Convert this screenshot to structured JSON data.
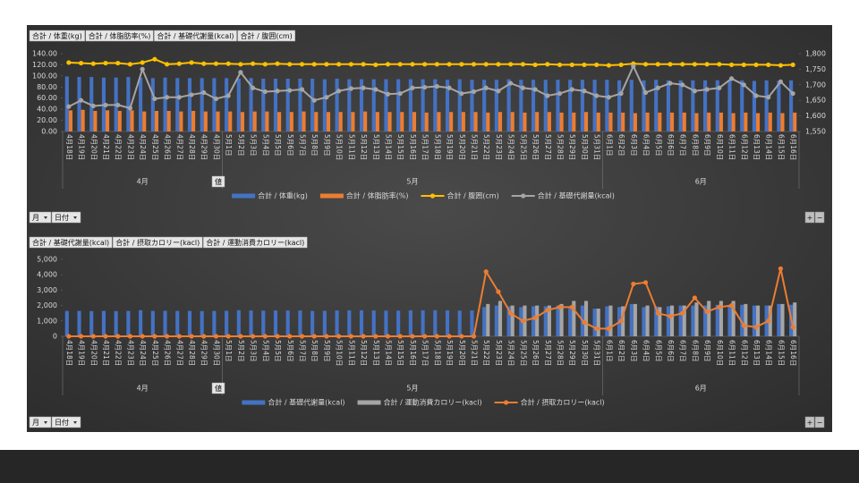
{
  "chart_data": [
    {
      "type": "combo",
      "field_buttons": [
        "合計 / 体重(kg)",
        "合計 / 体脂肪率(%)",
        "合計 / 基礎代謝量(kcal)",
        "合計 / 腹囲(cm)"
      ],
      "categories": [
        "4月18日",
        "4月19日",
        "4月20日",
        "4月21日",
        "4月22日",
        "4月23日",
        "4月24日",
        "4月25日",
        "4月26日",
        "4月27日",
        "4月28日",
        "4月29日",
        "4月30日",
        "5月1日",
        "5月2日",
        "5月3日",
        "5月4日",
        "5月5日",
        "5月6日",
        "5月7日",
        "5月8日",
        "5月9日",
        "5月10日",
        "5月11日",
        "5月12日",
        "5月13日",
        "5月14日",
        "5月15日",
        "5月16日",
        "5月17日",
        "5月18日",
        "5月19日",
        "5月20日",
        "5月21日",
        "5月22日",
        "5月23日",
        "5月24日",
        "5月25日",
        "5月26日",
        "5月27日",
        "5月28日",
        "5月29日",
        "5月30日",
        "5月31日",
        "6月1日",
        "6月2日",
        "6月3日",
        "6月4日",
        "6月5日",
        "6月6日",
        "6月7日",
        "6月8日",
        "6月9日",
        "6月10日",
        "6月11日",
        "6月12日",
        "6月13日",
        "6月14日",
        "6月15日",
        "6月16日"
      ],
      "groups": [
        "4月",
        "5月",
        "6月"
      ],
      "value_button": "値",
      "filter_buttons": [
        "月",
        "日付"
      ],
      "zoom_buttons": [
        "+",
        "−"
      ],
      "ylim": [
        0,
        140
      ],
      "yticks": [
        {
          "value": 0,
          "label": "0.00"
        },
        {
          "value": 20,
          "label": "20.00"
        },
        {
          "value": 40,
          "label": "40.00"
        },
        {
          "value": 60,
          "label": "60.00"
        },
        {
          "value": 80,
          "label": "80.00"
        },
        {
          "value": 100,
          "label": "100.00"
        },
        {
          "value": 120,
          "label": "120.00"
        },
        {
          "value": 140,
          "label": "140.00"
        }
      ],
      "y2lim": [
        1550,
        1800
      ],
      "y2ticks": [
        {
          "value": 1550,
          "label": "1,550"
        },
        {
          "value": 1600,
          "label": "1,600"
        },
        {
          "value": 1650,
          "label": "1,650"
        },
        {
          "value": 1700,
          "label": "1,700"
        },
        {
          "value": 1750,
          "label": "1,750"
        },
        {
          "value": 1800,
          "label": "1,800"
        }
      ],
      "series": [
        {
          "name": "合計 / 体重(kg)",
          "type": "bar",
          "color": "#4472c4",
          "values": [
            99,
            98,
            98,
            97,
            97,
            98,
            97,
            96,
            97,
            96,
            96,
            96,
            96,
            96,
            95,
            96,
            95,
            95,
            95,
            95,
            95,
            94,
            95,
            94,
            94,
            94,
            94,
            94,
            94,
            94,
            94,
            93,
            94,
            93,
            93,
            93,
            94,
            93,
            93,
            93,
            93,
            93,
            93,
            93,
            93,
            92,
            93,
            92,
            93,
            92,
            92,
            92,
            92,
            92,
            92,
            92,
            91,
            92,
            91,
            92
          ]
        },
        {
          "name": "合計 / 体脂肪率(%)",
          "type": "bar",
          "color": "#ed7d31",
          "values": [
            38,
            39,
            37,
            38,
            37,
            38,
            36,
            37,
            37,
            36,
            37,
            36,
            36,
            36,
            35,
            36,
            36,
            35,
            35,
            36,
            35,
            35,
            35,
            35,
            36,
            35,
            35,
            35,
            35,
            34,
            35,
            35,
            35,
            35,
            34,
            35,
            35,
            34,
            35,
            35,
            34,
            34,
            35,
            34,
            34,
            34,
            33,
            34,
            34,
            34,
            34,
            33,
            34,
            34,
            33,
            34,
            33,
            34,
            33,
            34
          ]
        },
        {
          "name": "合計 / 腹囲(cm)",
          "type": "line",
          "color": "#ffc000",
          "values": [
            124,
            123,
            122,
            123,
            123,
            121,
            124,
            130,
            121,
            122,
            124,
            122,
            122,
            122,
            121,
            122,
            121,
            122,
            121,
            121,
            121,
            121,
            121,
            121,
            121,
            120,
            121,
            121,
            121,
            121,
            121,
            121,
            121,
            121,
            121,
            121,
            121,
            121,
            120,
            121,
            120,
            120,
            120,
            120,
            119,
            120,
            122,
            121,
            121,
            121,
            121,
            121,
            121,
            121,
            120,
            120,
            120,
            120,
            119,
            120
          ]
        },
        {
          "name": "合計 / 基礎代謝量(kcal)",
          "type": "line",
          "color": "#a5a5a5",
          "axis": "y2",
          "values": [
            1630,
            1650,
            1632,
            1635,
            1635,
            1625,
            1750,
            1655,
            1660,
            1660,
            1668,
            1675,
            1655,
            1665,
            1740,
            1690,
            1678,
            1680,
            1682,
            1685,
            1650,
            1660,
            1680,
            1688,
            1690,
            1685,
            1670,
            1672,
            1690,
            1692,
            1695,
            1690,
            1672,
            1678,
            1690,
            1680,
            1705,
            1690,
            1685,
            1665,
            1672,
            1685,
            1680,
            1665,
            1660,
            1672,
            1760,
            1675,
            1690,
            1705,
            1700,
            1680,
            1685,
            1690,
            1720,
            1700,
            1665,
            1660,
            1710,
            1672
          ]
        }
      ]
    },
    {
      "type": "combo",
      "field_buttons": [
        "合計 / 基礎代謝量(kcal)",
        "合計 / 摂取カロリー(kacl)",
        "合計 / 運動消費カロリー(kacl)"
      ],
      "categories": [
        "4月18日",
        "4月19日",
        "4月20日",
        "4月21日",
        "4月22日",
        "4月23日",
        "4月24日",
        "4月25日",
        "4月26日",
        "4月27日",
        "4月28日",
        "4月29日",
        "4月30日",
        "5月1日",
        "5月2日",
        "5月3日",
        "5月4日",
        "5月5日",
        "5月6日",
        "5月7日",
        "5月8日",
        "5月9日",
        "5月10日",
        "5月11日",
        "5月12日",
        "5月13日",
        "5月14日",
        "5月15日",
        "5月16日",
        "5月17日",
        "5月18日",
        "5月19日",
        "5月20日",
        "5月21日",
        "5月22日",
        "5月23日",
        "5月24日",
        "5月25日",
        "5月26日",
        "5月27日",
        "5月28日",
        "5月29日",
        "5月30日",
        "5月31日",
        "6月1日",
        "6月2日",
        "6月3日",
        "6月4日",
        "6月5日",
        "6月6日",
        "6月7日",
        "6月8日",
        "6月9日",
        "6月10日",
        "6月11日",
        "6月12日",
        "6月13日",
        "6月14日",
        "6月15日",
        "6月16日"
      ],
      "groups": [
        "4月",
        "5月",
        "6月"
      ],
      "value_button": "値",
      "filter_buttons": [
        "月",
        "日付"
      ],
      "zoom_buttons": [
        "+",
        "−"
      ],
      "ylim": [
        0,
        5000
      ],
      "yticks": [
        0,
        {
          "value": 1000,
          "label": "1,000"
        },
        {
          "value": 2000,
          "label": "2,000"
        },
        {
          "value": 3000,
          "label": "3,000"
        },
        {
          "value": 4000,
          "label": "4,000"
        },
        {
          "value": 5000,
          "label": "5,000"
        }
      ],
      "series": [
        {
          "name": "合計 / 基礎代謝量(kcal)",
          "type": "bar",
          "color": "#4472c4",
          "values": [
            1650,
            1650,
            1640,
            1650,
            1640,
            1650,
            1700,
            1650,
            1660,
            1650,
            1650,
            1640,
            1650,
            1660,
            1700,
            1680,
            1670,
            1680,
            1680,
            1680,
            1650,
            1660,
            1680,
            1690,
            1690,
            1680,
            1670,
            1670,
            1690,
            1690,
            1700,
            1690,
            1670,
            1680,
            1900,
            2000,
            1950,
            1900,
            1950,
            1950,
            2000,
            1950,
            2000,
            1800,
            1950,
            1900,
            2100,
            1900,
            1950,
            1950,
            2000,
            2000,
            2000,
            2050,
            2050,
            2050,
            2000,
            2000,
            2100,
            2050
          ]
        },
        {
          "name": "合計 / 運動消費カロリー(kacl)",
          "type": "bar",
          "color": "#a5a5a5",
          "values": [
            0,
            0,
            0,
            0,
            0,
            0,
            0,
            0,
            0,
            0,
            0,
            0,
            0,
            0,
            0,
            0,
            0,
            0,
            0,
            0,
            0,
            0,
            0,
            0,
            0,
            0,
            0,
            0,
            0,
            0,
            0,
            0,
            0,
            0,
            2100,
            2300,
            2000,
            2000,
            2000,
            2000,
            2100,
            2300,
            2300,
            1800,
            2000,
            1950,
            2100,
            2000,
            1900,
            2000,
            2000,
            2200,
            2300,
            2300,
            2300,
            2100,
            2000,
            2000,
            2100,
            2200
          ]
        },
        {
          "name": "合計 / 摂取カロリー(kacl)",
          "type": "line",
          "color": "#ed7d31",
          "values": [
            0,
            0,
            0,
            0,
            0,
            0,
            0,
            0,
            0,
            0,
            0,
            0,
            0,
            0,
            0,
            0,
            0,
            0,
            0,
            0,
            0,
            0,
            0,
            0,
            0,
            0,
            0,
            0,
            0,
            0,
            0,
            0,
            0,
            0,
            4200,
            2900,
            1500,
            1000,
            1200,
            1700,
            1900,
            1900,
            900,
            500,
            500,
            1000,
            3400,
            3500,
            1500,
            1300,
            1500,
            2500,
            1600,
            1900,
            2000,
            700,
            600,
            1000,
            4400,
            600
          ]
        }
      ]
    }
  ]
}
